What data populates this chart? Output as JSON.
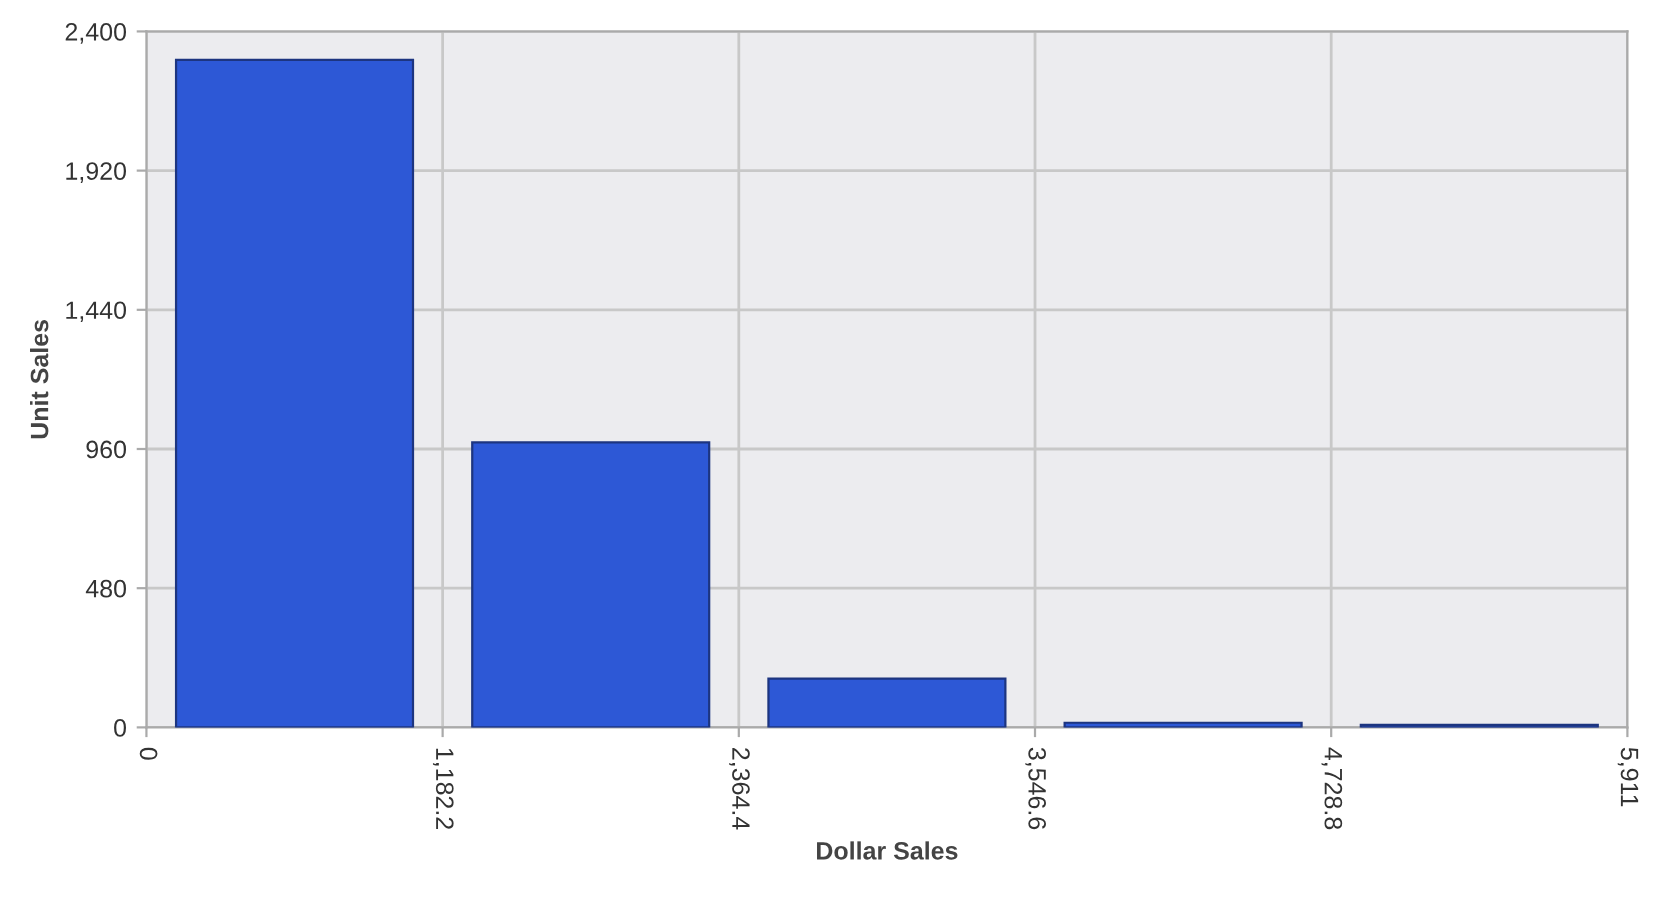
{
  "chart_data": {
    "type": "histogram",
    "xlabel": "Dollar Sales",
    "ylabel": "Unit Sales",
    "bins": [
      0,
      1182.2,
      2364.4,
      3546.6,
      4728.8,
      5911
    ],
    "values": [
      2302,
      983,
      168,
      16,
      9
    ],
    "color": "#2d58d6",
    "xlim": [
      0,
      5911
    ],
    "xticks": [
      0,
      {
        "value": 1182.2,
        "label": "1,182.2"
      },
      {
        "value": 2364.4,
        "label": "2,364.4"
      },
      {
        "value": 3546.6,
        "label": "3,546.6"
      },
      {
        "value": 4728.8,
        "label": "4,728.8"
      },
      {
        "value": 5911,
        "label": "5,911"
      }
    ],
    "ylim": [
      0,
      2400
    ],
    "yticks": [
      0,
      480,
      960,
      {
        "value": 1440,
        "label": "1,440"
      },
      {
        "value": 1920,
        "label": "1,920"
      },
      {
        "value": 2400,
        "label": "2,400"
      }
    ],
    "grid": true,
    "legend": false
  }
}
